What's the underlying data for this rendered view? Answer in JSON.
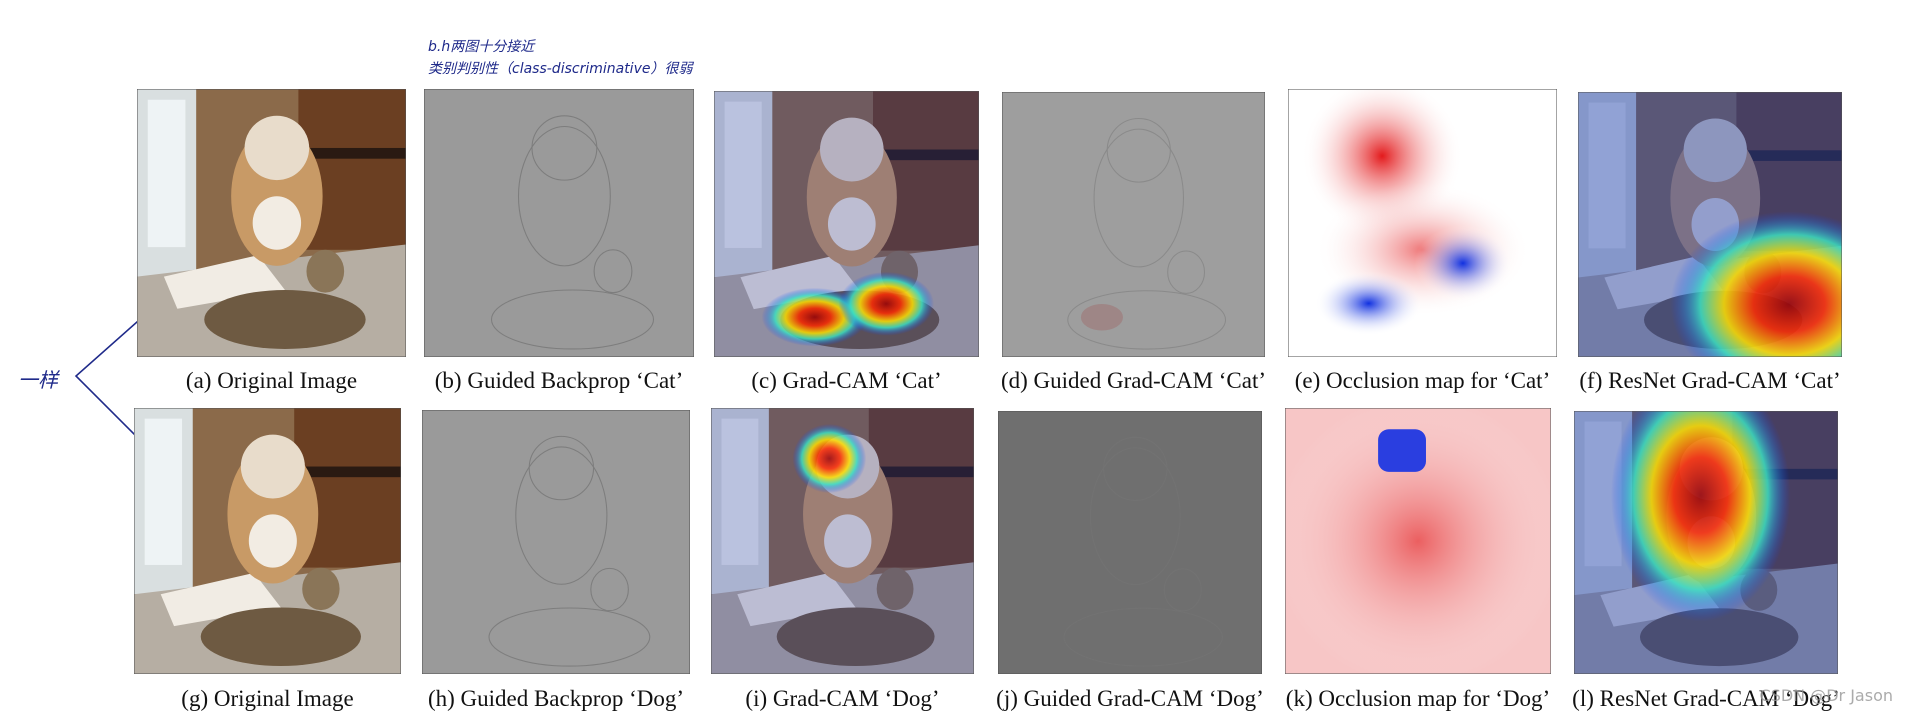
{
  "annotations": {
    "note_line_1": "b.h两图十分接近",
    "note_line_2": "类别判别性（class-discriminative）很弱",
    "side_note": "一样",
    "watermark": "CSDN @Dr Jason"
  },
  "panels": [
    {
      "caption": "(a) Original Image"
    },
    {
      "caption": "(b) Guided Backprop ‘Cat’"
    },
    {
      "caption": "(c) Grad-CAM ‘Cat’"
    },
    {
      "caption": "(d) Guided Grad-CAM ‘Cat’"
    },
    {
      "caption": "(e) Occlusion map for ‘Cat’"
    },
    {
      "caption": "(f) ResNet Grad-CAM ‘Cat’"
    },
    {
      "caption": "(g) Original Image"
    },
    {
      "caption": "(h) Guided Backprop ‘Dog’"
    },
    {
      "caption": "(i) Grad-CAM ‘Dog’"
    },
    {
      "caption": "(j) Guided Grad-CAM ‘Dog’"
    },
    {
      "caption": "(k) Occlusion map for ‘Dog’"
    },
    {
      "caption": "(l) ResNet Grad-CAM ‘Dog’"
    }
  ]
}
